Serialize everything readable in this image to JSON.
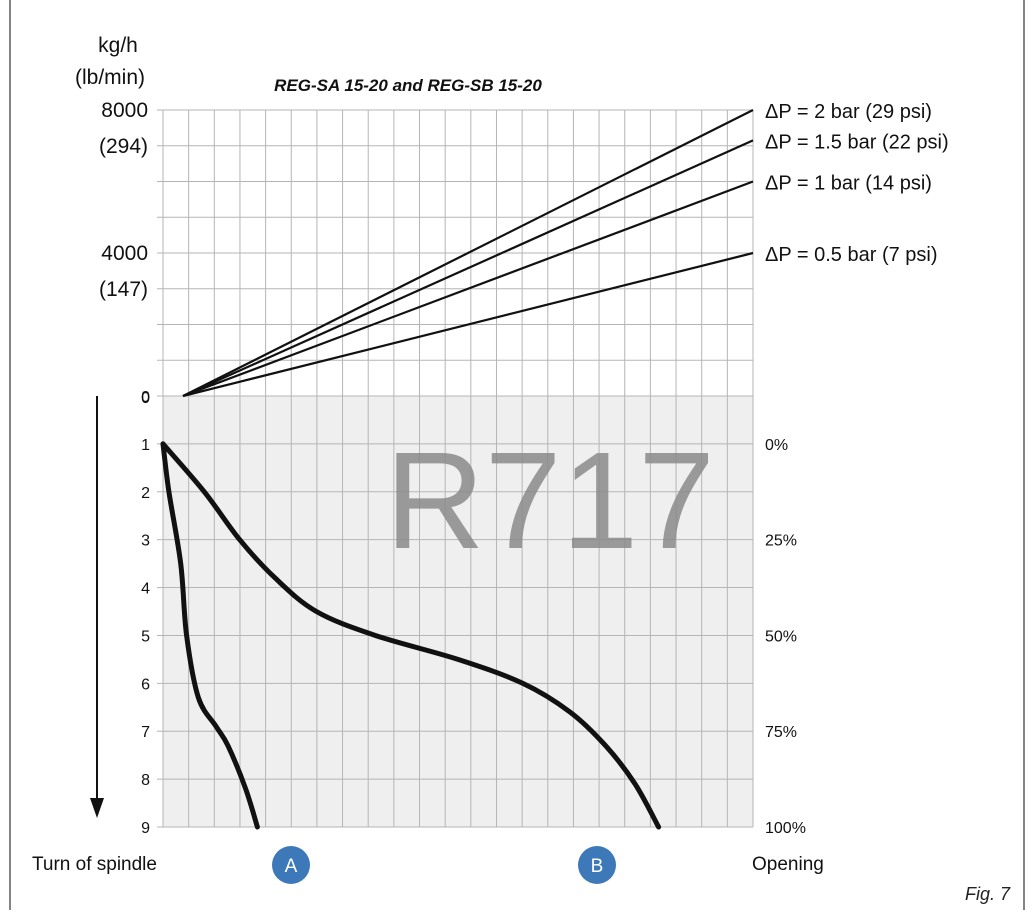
{
  "colors": {
    "grid": "#b5b5b5",
    "lower_panel_bg": "#efefef",
    "line": "#111111",
    "badge": "#3d78b8",
    "watermark": "#8a8a8a"
  },
  "chart_data": [
    {
      "type": "line",
      "title": "REG-SA 15-20 and REG-SB 15-20",
      "ylabel_primary": "kg/h",
      "ylabel_secondary": "(lb/min)",
      "ylim": [
        0,
        8000
      ],
      "x": [
        0,
        1
      ],
      "y_ticks": [
        {
          "value": 8000,
          "label": "8000",
          "sublabel": "(294)"
        },
        {
          "value": 4000,
          "label": "4000",
          "sublabel": "(147)"
        },
        {
          "value": 0,
          "label": "0",
          "sublabel": ""
        }
      ],
      "grid": true,
      "series": [
        {
          "name": "ΔP = 2 bar (29 psi)",
          "values": [
            0,
            8000
          ]
        },
        {
          "name": "ΔP = 1.5 bar (22 psi)",
          "values": [
            0,
            7150
          ]
        },
        {
          "name": "ΔP = 1 bar (14 psi)",
          "values": [
            0,
            6000
          ]
        },
        {
          "name": "ΔP = 0.5 bar (7 psi)",
          "values": [
            0,
            4000
          ]
        }
      ]
    },
    {
      "type": "line",
      "ylabel": "Turn of spindle",
      "y2label": "Opening",
      "ylim": [
        0,
        9
      ],
      "y_ticks": [
        "0",
        "1",
        "2",
        "3",
        "4",
        "5",
        "6",
        "7",
        "8",
        "9"
      ],
      "y2_ticks": [
        {
          "turn": 1,
          "label": "0%"
        },
        {
          "turn": 3,
          "label": "25%"
        },
        {
          "turn": 5,
          "label": "50%"
        },
        {
          "turn": 7,
          "label": "75%"
        },
        {
          "turn": 9,
          "label": "100%"
        }
      ],
      "grid": true,
      "series": [
        {
          "name": "A",
          "points": [
            [
              0,
              1
            ],
            [
              0.01,
              2
            ],
            [
              0.03,
              3.5
            ],
            [
              0.04,
              5.0
            ],
            [
              0.06,
              6.3
            ],
            [
              0.09,
              6.9
            ],
            [
              0.11,
              7.3
            ],
            [
              0.14,
              8.2
            ],
            [
              0.16,
              9.0
            ]
          ]
        },
        {
          "name": "B",
          "points": [
            [
              0,
              1
            ],
            [
              0.07,
              2.0
            ],
            [
              0.13,
              3.0
            ],
            [
              0.19,
              3.8
            ],
            [
              0.26,
              4.5
            ],
            [
              0.36,
              5.0
            ],
            [
              0.5,
              5.5
            ],
            [
              0.61,
              6.0
            ],
            [
              0.69,
              6.6
            ],
            [
              0.75,
              7.3
            ],
            [
              0.8,
              8.1
            ],
            [
              0.84,
              9.0
            ]
          ]
        }
      ]
    }
  ],
  "watermark": "R717",
  "badges": {
    "a": "A",
    "b": "B"
  },
  "figure_label": "Fig. 7"
}
